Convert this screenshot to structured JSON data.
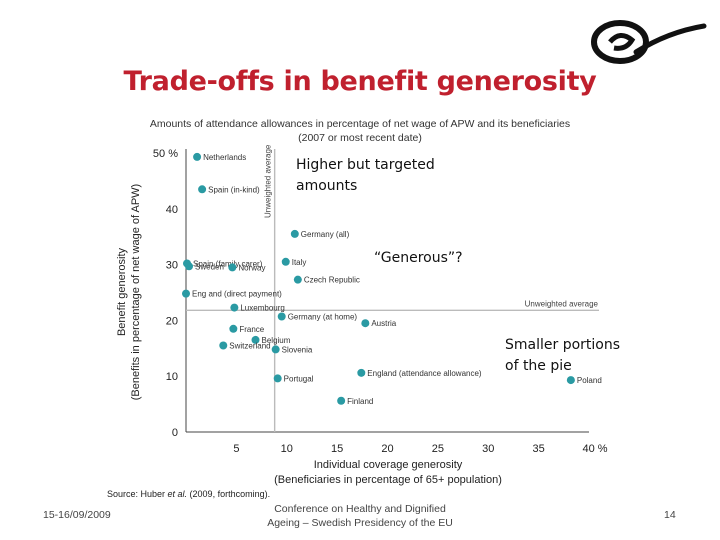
{
  "slide": {
    "title": "Trade-offs in benefit generosity",
    "callouts": [
      "Higher but targeted amounts",
      "“Generous”?",
      "Smaller portions of the pie"
    ],
    "source_prefix": "Source: Huber ",
    "source_italic": "et al.",
    "source_suffix": " (2009, forthcoming).",
    "footer_date": "15-16/09/2009",
    "footer_conference_line1": "Conference on Healthy and Dignified",
    "footer_conference_line2": "Ageing – Swedish Presidency of the EU",
    "page_number": "14"
  },
  "colors": {
    "accent": "#c0202e",
    "point": "#2a9aa3",
    "axis": "#444444",
    "refline": "#bbbbbb"
  },
  "chart_data": {
    "type": "scatter",
    "title": "Amounts of attendance allowances in percentage of net wage of APW and its beneficiaries",
    "subtitle": "(2007 or most recent date)",
    "xlabel": "Individual coverage generosity",
    "xlabel2": "(Beneficiaries in percentage of 65+ population)",
    "ylabel": "Benefit generosity",
    "ylabel2": "(Benefits in percentage of net wage of APW)",
    "xlim": [
      0,
      40
    ],
    "ylim": [
      0,
      50
    ],
    "x_ticks": [
      "5",
      "10",
      "15",
      "20",
      "25",
      "30",
      "35",
      "40 %"
    ],
    "y_ticks": [
      "0",
      "10",
      "20",
      "30",
      "40",
      "50 %"
    ],
    "grid": false,
    "reference_lines": [
      {
        "orientation": "vertical",
        "value": 8.8,
        "label": "Unweighted average"
      },
      {
        "orientation": "horizontal",
        "value": 21.8,
        "label": "Unweighted average"
      }
    ],
    "points": [
      {
        "label": "Netherlands",
        "x": 1.1,
        "y": 49.3
      },
      {
        "label": "Spain (in-kind)",
        "x": 1.6,
        "y": 43.5
      },
      {
        "label": "Germany (all)",
        "x": 10.8,
        "y": 35.5
      },
      {
        "label": "Spain (family carer)",
        "x": 0.1,
        "y": 30.2
      },
      {
        "label": "Sweden",
        "x": 0.3,
        "y": 29.7
      },
      {
        "label": "Norway",
        "x": 4.6,
        "y": 29.5
      },
      {
        "label": "Italy",
        "x": 9.9,
        "y": 30.5
      },
      {
        "label": "Czech Republic",
        "x": 11.1,
        "y": 27.3
      },
      {
        "label": "Eng and (direct payment)",
        "x": 0.0,
        "y": 24.8
      },
      {
        "label": "Luxembourg",
        "x": 4.8,
        "y": 22.3
      },
      {
        "label": "Germany (at home)",
        "x": 9.5,
        "y": 20.7
      },
      {
        "label": "Austria",
        "x": 17.8,
        "y": 19.5
      },
      {
        "label": "France",
        "x": 4.7,
        "y": 18.5
      },
      {
        "label": "Belgium",
        "x": 6.9,
        "y": 16.5
      },
      {
        "label": "Switzerland",
        "x": 3.7,
        "y": 15.5
      },
      {
        "label": "Slovenia",
        "x": 8.9,
        "y": 14.8
      },
      {
        "label": "Portugal",
        "x": 9.1,
        "y": 9.6
      },
      {
        "label": "England (attendance allowance)",
        "x": 17.4,
        "y": 10.6
      },
      {
        "label": "Finland",
        "x": 15.4,
        "y": 5.6
      },
      {
        "label": "Poland",
        "x": 38.2,
        "y": 9.3
      }
    ]
  }
}
